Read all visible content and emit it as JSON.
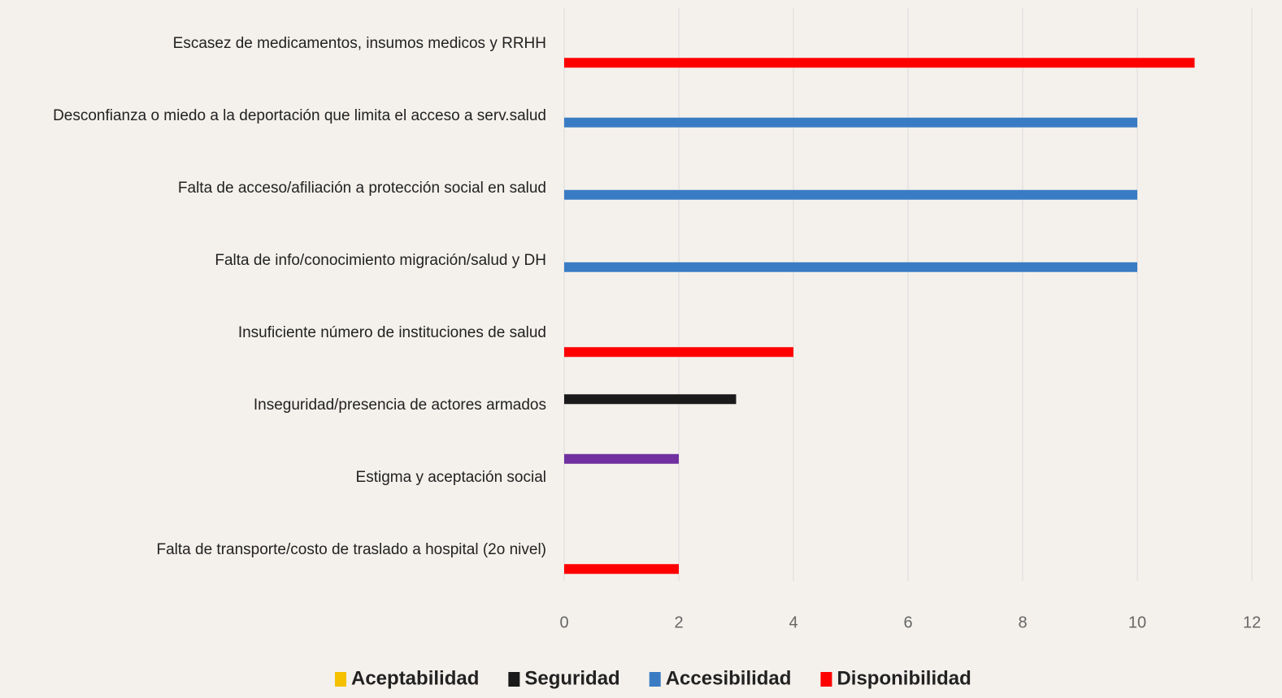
{
  "chart_data": {
    "type": "hbar",
    "categories": [
      "Escasez de medicamentos, insumos medicos y RRHH",
      "Desconfianza o miedo a la deportación que limita el acceso a serv.salud",
      "Falta de acceso/afiliación a protección social en salud",
      "Falta de info/conocimiento migración/salud y DH",
      "Insuficiente número de instituciones de salud",
      "Inseguridad/presencia de actores armados",
      "Estigma y aceptación social",
      "Falta de transporte/costo de traslado a hospital (2o nivel)"
    ],
    "series": [
      {
        "name": "Aceptabilidad",
        "color": "#f5c000",
        "bar_color": "#7030a0",
        "values": [
          null,
          null,
          null,
          null,
          null,
          null,
          2,
          null
        ]
      },
      {
        "name": "Seguridad",
        "color": "#1a1a1a",
        "values": [
          null,
          null,
          null,
          null,
          null,
          3,
          null,
          null
        ]
      },
      {
        "name": "Accesibilidad",
        "color": "#3a7cc4",
        "values": [
          null,
          10,
          10,
          10,
          null,
          null,
          null,
          null
        ]
      },
      {
        "name": "Disponibilidad",
        "color": "#ff0000",
        "values": [
          11,
          null,
          null,
          null,
          4,
          null,
          null,
          2
        ]
      }
    ],
    "xlim": [
      0,
      12
    ],
    "xticks": [
      0,
      2,
      4,
      6,
      8,
      10,
      12
    ],
    "grid": true,
    "legend": "bottom"
  }
}
